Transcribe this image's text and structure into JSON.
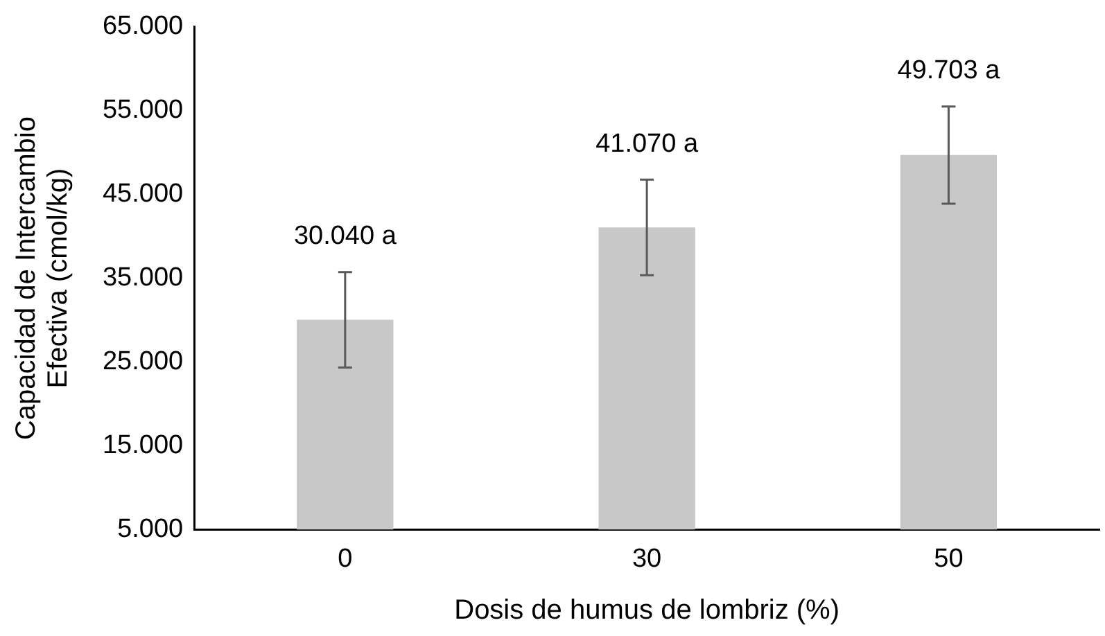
{
  "chart_data": {
    "type": "bar",
    "xlabel": "Dosis de humus de lombriz (%)",
    "ylabel": "Capacidad de Intercambio\nEfectiva (cmol/kg)",
    "categories": [
      "0",
      "30",
      "50"
    ],
    "values": [
      30040,
      41070,
      49703
    ],
    "errors": [
      5700,
      5700,
      5800
    ],
    "value_labels": [
      "30.040 a",
      "41.070 a",
      "49.703 a"
    ],
    "color": "#c8c8c8",
    "ylim": [
      5000,
      65000
    ],
    "yticks": [
      {
        "value": 5000,
        "label": "5.000"
      },
      {
        "value": 15000,
        "label": "15.000"
      },
      {
        "value": 25000,
        "label": "25.000"
      },
      {
        "value": 35000,
        "label": "35.000"
      },
      {
        "value": 45000,
        "label": "45.000"
      },
      {
        "value": 55000,
        "label": "55.000"
      },
      {
        "value": 65000,
        "label": "65.000"
      }
    ],
    "grid": false,
    "legend": false
  }
}
